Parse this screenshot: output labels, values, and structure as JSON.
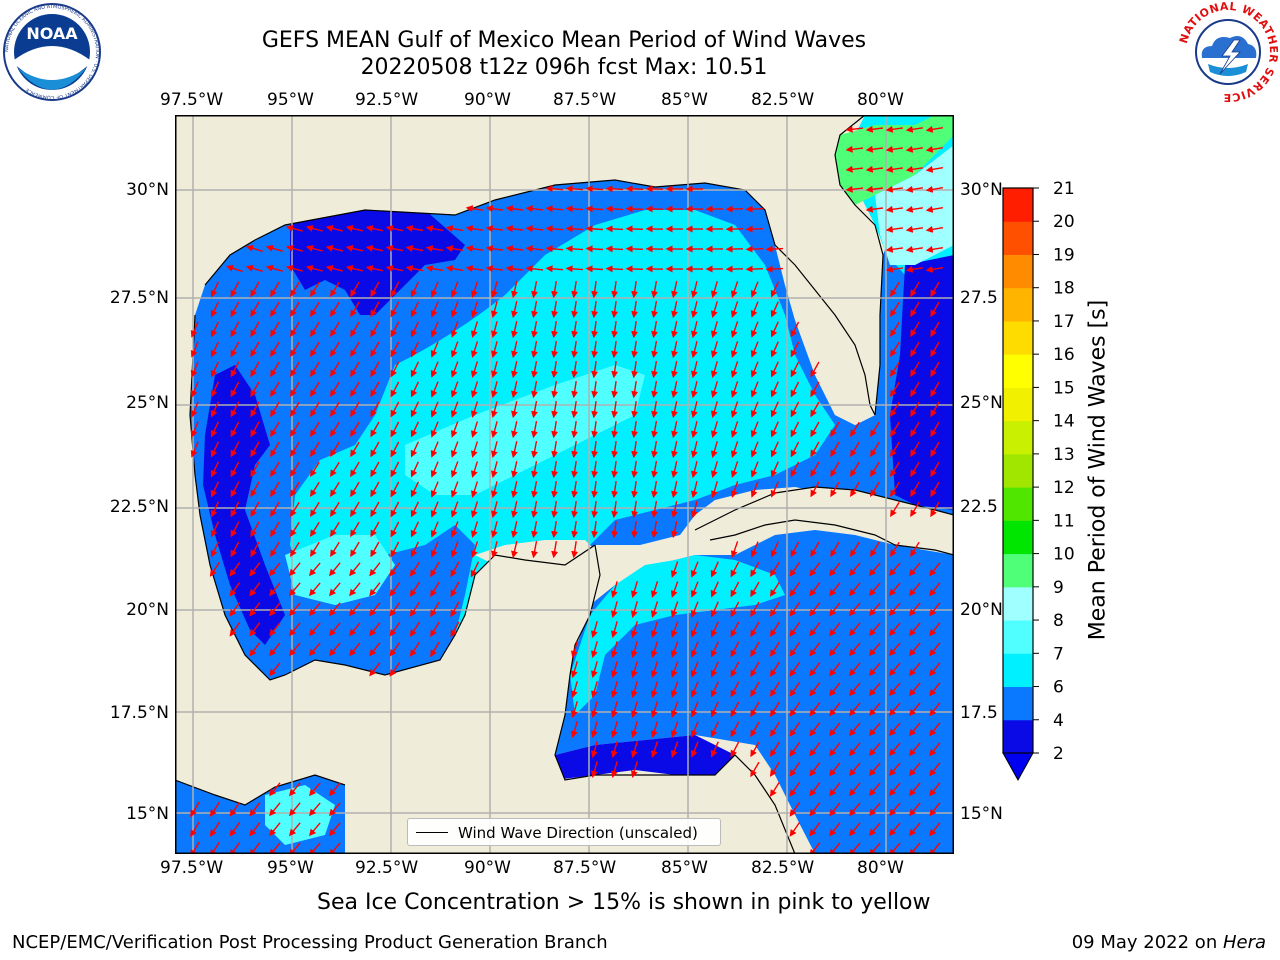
{
  "title": {
    "line1": "GEFS MEAN Gulf of Mexico Mean Period of Wind Waves",
    "line2": "20220508 t12z 096h fcst   Max: 10.51"
  },
  "logos": {
    "left_text": "NOAA",
    "left_ring": "NATIONAL OCEANIC AND ATMOSPHERIC ADMINISTRATION · U.S. DEPARTMENT OF COMMERCE",
    "right_ring": "NATIONAL WEATHER SERVICE"
  },
  "map": {
    "lon_labels_top": [
      "97.5°W",
      "95°W",
      "92.5°W",
      "90°W",
      "87.5°W",
      "85°W",
      "82.5°W",
      "80°W"
    ],
    "lon_labels_bottom": [
      "97.5°W",
      "95°W",
      "92.5°W",
      "90°W",
      "87.5°W",
      "85°W",
      "82.5°W",
      "80°W"
    ],
    "lat_labels_left": [
      "30°N",
      "27.5°N",
      "25°N",
      "22.5°N",
      "20°N",
      "17.5°N",
      "15°N"
    ],
    "lat_labels_right": [
      "30°N",
      "27.5",
      "25°N",
      "22.5",
      "20°N",
      "17.5",
      "15°N"
    ],
    "land_color": "#efedda",
    "arrow_color": "#ff0000",
    "legend_label": "Wind Wave Direction (unscaled)"
  },
  "colorbar": {
    "label": "Mean Period of Wind Waves [s]",
    "ticks": [
      "2",
      "4",
      "6",
      "7",
      "8",
      "9",
      "10",
      "11",
      "12",
      "13",
      "14",
      "15",
      "16",
      "17",
      "18",
      "19",
      "20",
      "21"
    ],
    "colors": [
      "#0a0ae6",
      "#0a78ff",
      "#00f0ff",
      "#50ffff",
      "#a0ffff",
      "#50ff78",
      "#00e600",
      "#50e600",
      "#a0e600",
      "#c8f000",
      "#f0f000",
      "#ffff00",
      "#ffdc00",
      "#ffb400",
      "#ff8c00",
      "#ff5000",
      "#ff1e00"
    ],
    "under_color": "#0000f0"
  },
  "footer": {
    "note": "Sea Ice Concentration > 15% is shown in pink to yellow",
    "left": "NCEP/EMC/Verification Post Processing Product Generation Branch",
    "right_date": "09 May 2022 on ",
    "right_host": "Hera"
  }
}
